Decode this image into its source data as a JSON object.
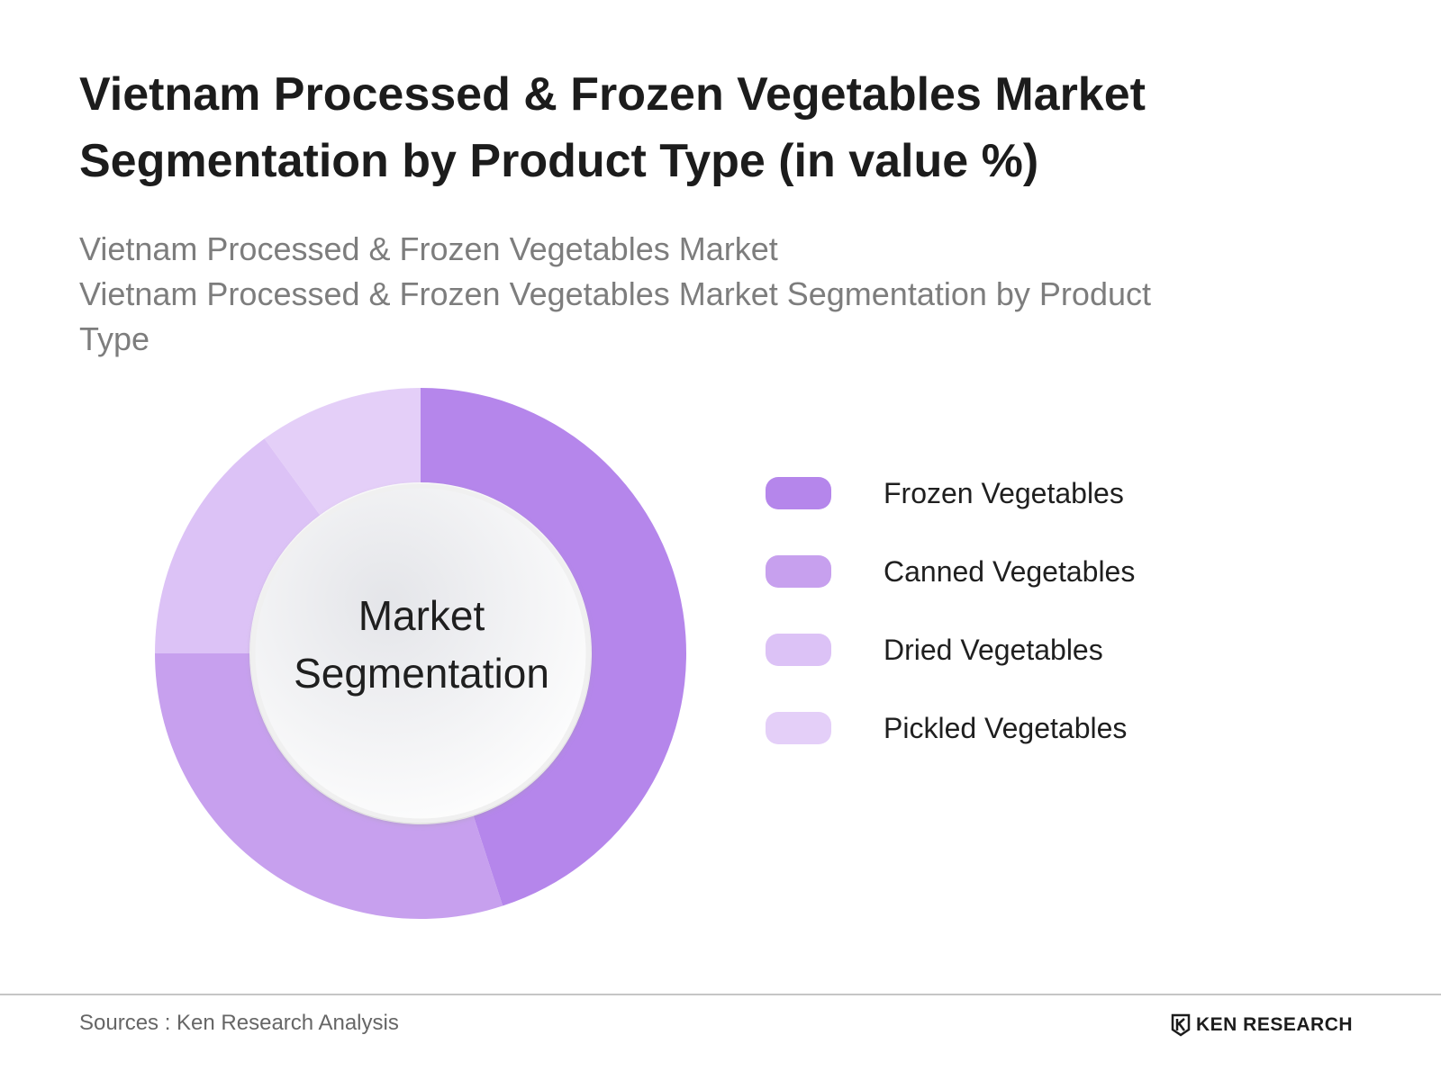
{
  "header": {
    "title": "Vietnam Processed & Frozen Vegetables Market Segmentation by Product Type (in value %)",
    "subtitle_line1": "Vietnam Processed & Frozen Vegetables Market",
    "subtitle_line2": "Vietnam Processed & Frozen Vegetables Market Segmentation by Product Type"
  },
  "chart_data": {
    "type": "pie",
    "donut": true,
    "center_label": "Market Segmentation",
    "categories": [
      "Frozen Vegetables",
      "Canned Vegetables",
      "Dried Vegetables",
      "Pickled Vegetables"
    ],
    "values": [
      45,
      30,
      15,
      10
    ],
    "unit": "%",
    "colors": [
      "#b586eb",
      "#c7a0ee",
      "#dcc2f6",
      "#e4cff8"
    ],
    "legend_position": "right"
  },
  "footer": {
    "source": "Sources : Ken Research Analysis",
    "logo_text": "KEN RESEARCH",
    "logo_icon": "ken-research-logo-icon"
  }
}
